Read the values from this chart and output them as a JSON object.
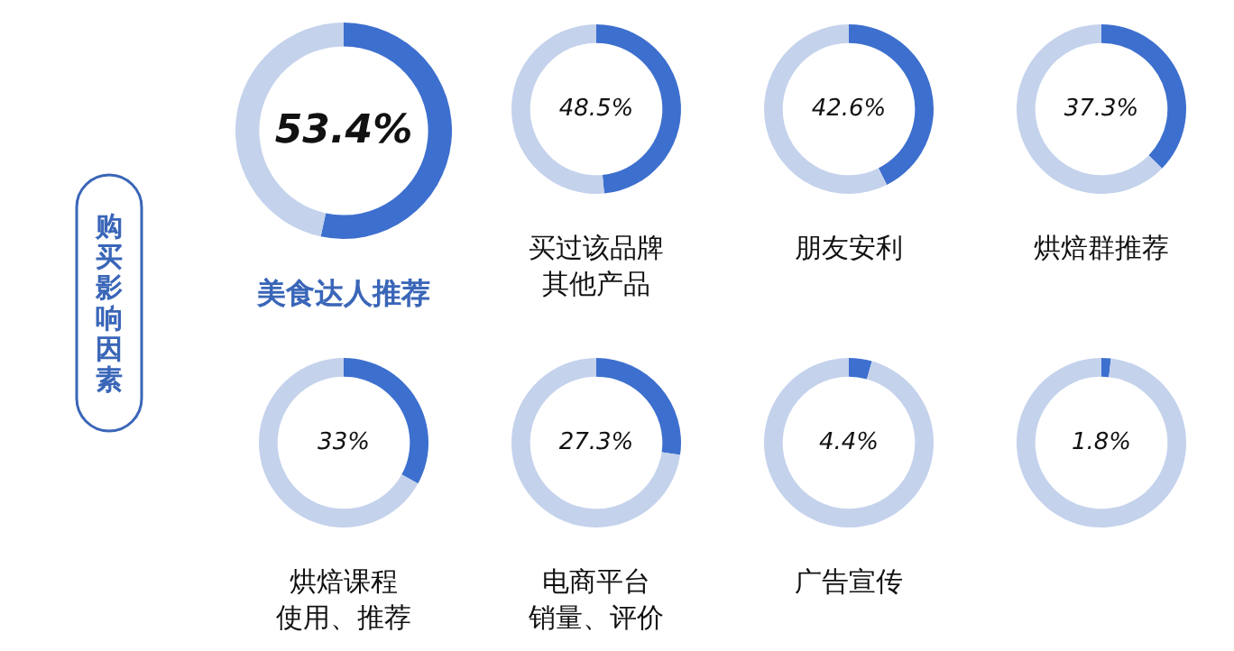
{
  "chart_data": [
    {
      "type": "other",
      "title": "购买影响因素"
    },
    {
      "type": "donut",
      "title": "美食达人推荐",
      "categories": [
        null,
        null
      ],
      "values": [
        53.4,
        46.6
      ],
      "annotations": [
        "53.4%"
      ],
      "colors": [
        "#3d6fce",
        "#c4d2ec"
      ]
    },
    {
      "type": "donut",
      "title": "买过该品牌其他产品",
      "categories": [
        null,
        null
      ],
      "values": [
        48.5,
        51.5
      ],
      "annotations": [
        "48.5%"
      ],
      "colors": [
        "#3d6fce",
        "#c4d2ec"
      ]
    },
    {
      "type": "donut",
      "title": "朋友安利",
      "categories": [
        null,
        null
      ],
      "values": [
        42.6,
        57.4
      ],
      "annotations": [
        "42.6%"
      ],
      "colors": [
        "#3d6fce",
        "#c4d2ec"
      ]
    },
    {
      "type": "donut",
      "title": "烘焙群推荐",
      "categories": [
        null,
        null
      ],
      "values": [
        37.3,
        62.7
      ],
      "annotations": [
        "37.3%"
      ],
      "colors": [
        "#3d6fce",
        "#c4d2ec"
      ]
    },
    {
      "type": "donut",
      "title": "烘焙课程使用、推荐",
      "categories": [
        null,
        null
      ],
      "values": [
        33,
        67
      ],
      "annotations": [
        "33%"
      ],
      "colors": [
        "#3d6fce",
        "#c4d2ec"
      ]
    },
    {
      "type": "donut",
      "title": "电商平台销量、评价",
      "categories": [
        null,
        null
      ],
      "values": [
        27.3,
        72.7
      ],
      "annotations": [
        "27.3%"
      ],
      "colors": [
        "#3d6fce",
        "#c4d2ec"
      ]
    },
    {
      "type": "donut",
      "title": "广告宣传",
      "categories": [
        null,
        null
      ],
      "values": [
        4.4,
        95.6
      ],
      "annotations": [
        "4.4%"
      ],
      "colors": [
        "#3d6fce",
        "#c4d2ec"
      ]
    },
    {
      "type": "donut",
      "categories": [
        null,
        null
      ],
      "values": [
        1.8,
        98.2
      ],
      "annotations": [
        "1.8%"
      ],
      "colors": [
        "#3d6fce",
        "#c4d2ec"
      ]
    }
  ]
}
